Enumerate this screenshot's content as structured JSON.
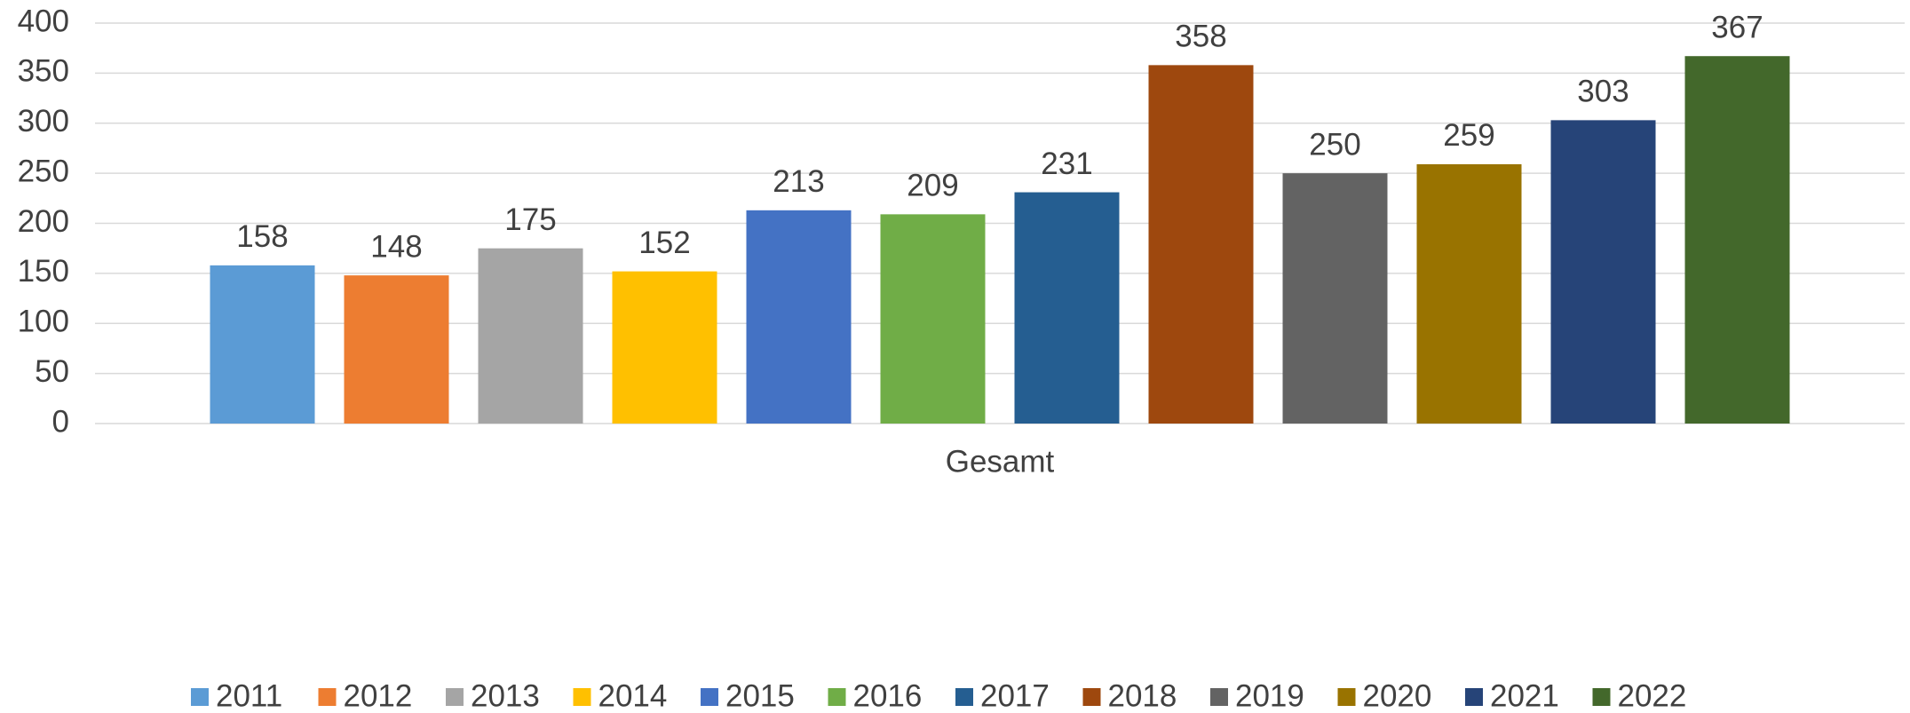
{
  "chart_data": {
    "type": "bar",
    "categories": [
      "Gesamt"
    ],
    "series": [
      {
        "name": "2011",
        "color": "#5b9bd5",
        "values": [
          158
        ]
      },
      {
        "name": "2012",
        "color": "#ed7d31",
        "values": [
          148
        ]
      },
      {
        "name": "2013",
        "color": "#a5a5a5",
        "values": [
          175
        ]
      },
      {
        "name": "2014",
        "color": "#ffc000",
        "values": [
          152
        ]
      },
      {
        "name": "2015",
        "color": "#4472c4",
        "values": [
          213
        ]
      },
      {
        "name": "2016",
        "color": "#70ad47",
        "values": [
          209
        ]
      },
      {
        "name": "2017",
        "color": "#255e91",
        "values": [
          231
        ]
      },
      {
        "name": "2018",
        "color": "#9e480e",
        "values": [
          358
        ]
      },
      {
        "name": "2019",
        "color": "#636363",
        "values": [
          250
        ]
      },
      {
        "name": "2020",
        "color": "#997300",
        "values": [
          259
        ]
      },
      {
        "name": "2021",
        "color": "#264478",
        "values": [
          303
        ]
      },
      {
        "name": "2022",
        "color": "#43682b",
        "values": [
          367
        ]
      }
    ],
    "ylim": [
      0,
      400
    ],
    "yticks": [
      0,
      50,
      100,
      150,
      200,
      250,
      300,
      350,
      400
    ],
    "grid": true,
    "legend": "bottom",
    "data_labels": true
  }
}
